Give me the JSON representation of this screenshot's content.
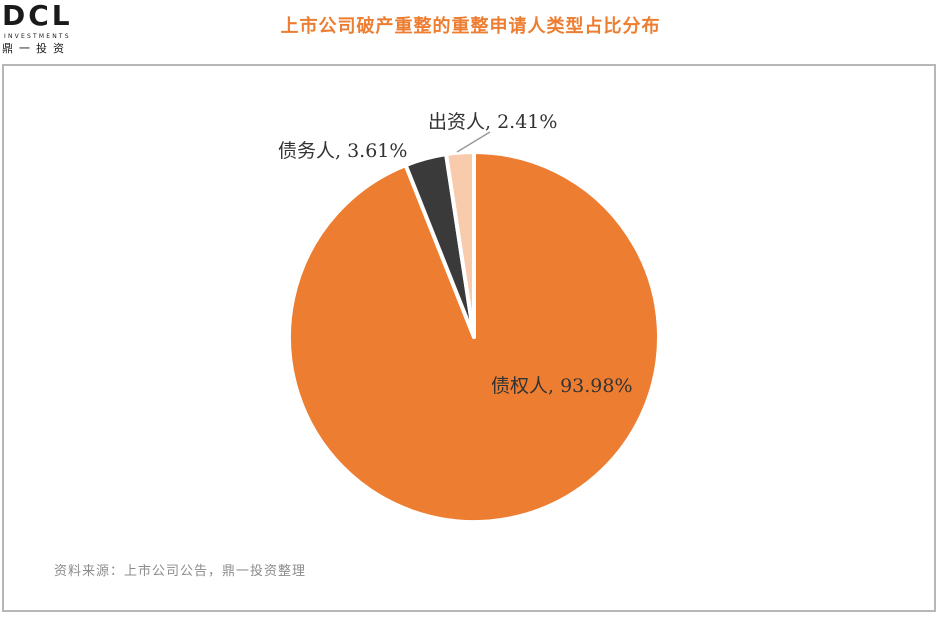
{
  "logo": {
    "mark": "DCL",
    "sub": "INVESTMENTS",
    "cn": "鼎一投资"
  },
  "title": "上市公司破产重整的重整申请人类型占比分布",
  "source": "资料来源：上市公司公告，鼎一投资整理",
  "colors": {
    "accent": "#ED7D31",
    "debtor": "#3A3A3A",
    "investor": "#F8CBAD",
    "frame": "#B7B7B7"
  },
  "chart_data": {
    "type": "pie",
    "title": "上市公司破产重整的重整申请人类型占比分布",
    "slices": [
      {
        "label": "债权人",
        "value": 93.98,
        "display": "债权人, 93.98%",
        "color": "#ED7D31"
      },
      {
        "label": "债务人",
        "value": 3.61,
        "display": "债务人, 3.61%",
        "color": "#3A3A3A"
      },
      {
        "label": "出资人",
        "value": 2.41,
        "display": "出资人, 2.41%",
        "color": "#F8CBAD"
      }
    ],
    "start": "12 o'clock",
    "direction": "clockwise",
    "legend": "none"
  }
}
